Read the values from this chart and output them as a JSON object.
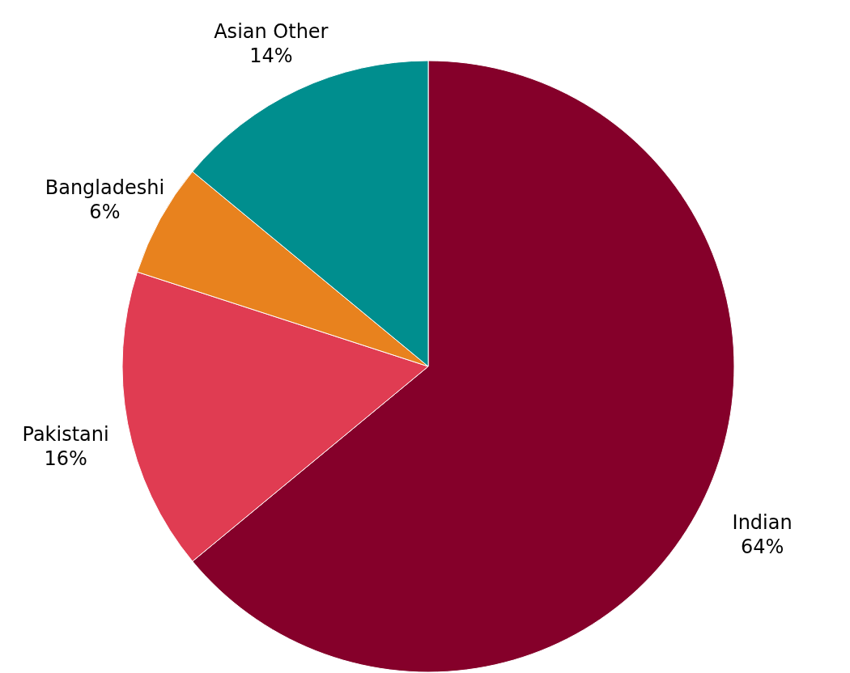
{
  "chart_data": {
    "type": "pie",
    "categories": [
      "Indian",
      "Pakistani",
      "Bangladeshi",
      "Asian Other"
    ],
    "values": [
      64,
      16,
      6,
      14
    ],
    "value_labels": [
      "64%",
      "16%",
      "6%",
      "14%"
    ],
    "colors": [
      "#85002a",
      "#e03c52",
      "#e8821e",
      "#008e8e"
    ]
  }
}
